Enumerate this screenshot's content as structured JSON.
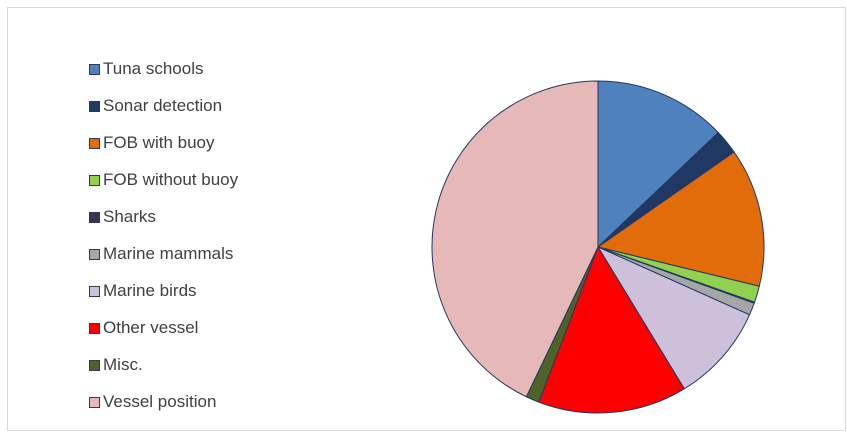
{
  "chart_data": {
    "type": "pie",
    "title": "",
    "legend_position": "left",
    "categories": [
      "Tuna schools",
      "Sonar detection",
      "FOB with buoy",
      "FOB without buoy",
      "Sharks",
      "Marine mammals",
      "Marine birds",
      "Other vessel",
      "Misc.",
      "Vessel position"
    ],
    "values": [
      12.9,
      2.4,
      13.5,
      1.6,
      0.1,
      1.2,
      9.6,
      14.5,
      1.3,
      42.9
    ],
    "colors": [
      "#4f81bd",
      "#1f3864",
      "#e26b0a",
      "#92d050",
      "#403151",
      "#a6a6a6",
      "#ccc0da",
      "#ff0000",
      "#4f6228",
      "#e6b8b7"
    ],
    "slice_border_color": "#1f3864"
  }
}
